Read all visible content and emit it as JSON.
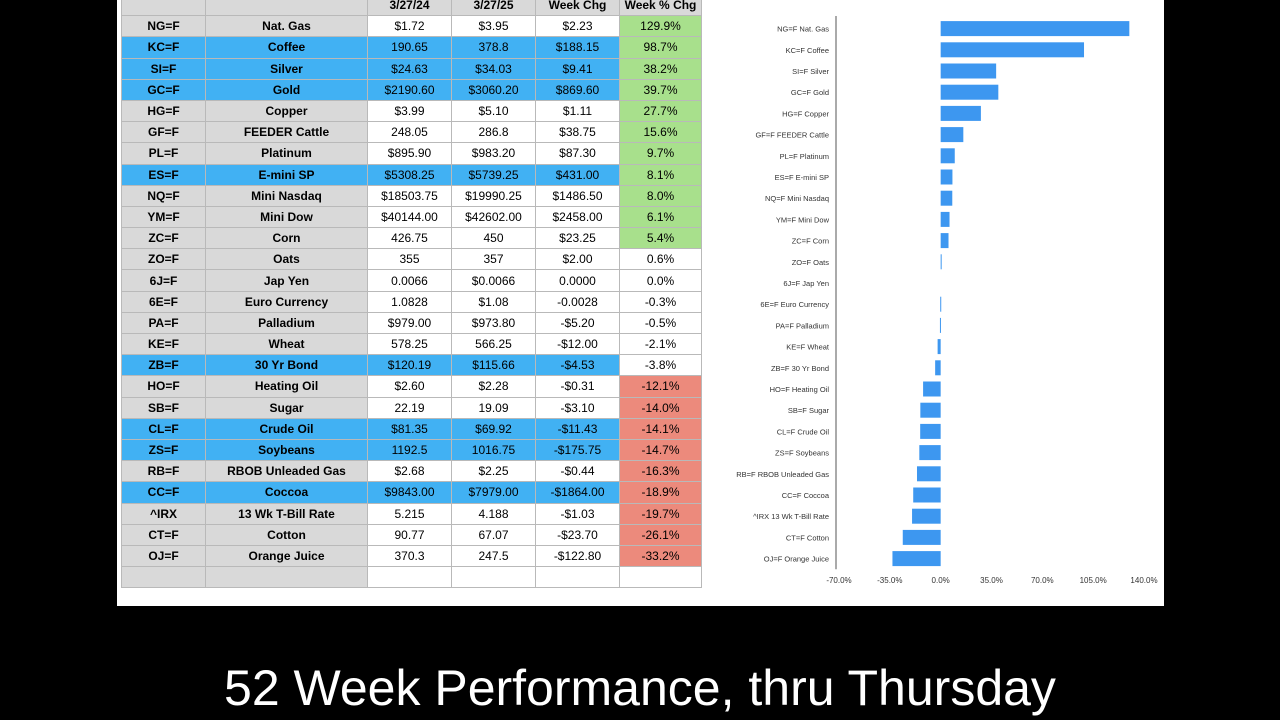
{
  "header": {
    "c3": "3/27/24",
    "c4": "3/27/25",
    "c5": "Week Chg",
    "c6": "Week % Chg"
  },
  "rows": [
    {
      "sym": "NG=F",
      "name": "Nat. Gas",
      "p1": "$1.72",
      "p2": "$3.95",
      "chg": "$2.23",
      "pct": "129.9%",
      "hl": false
    },
    {
      "sym": "KC=F",
      "name": "Coffee",
      "p1": "190.65",
      "p2": "378.8",
      "chg": "$188.15",
      "pct": "98.7%",
      "hl": true
    },
    {
      "sym": "SI=F",
      "name": "Silver",
      "p1": "$24.63",
      "p2": "$34.03",
      "chg": "$9.41",
      "pct": "38.2%",
      "hl": true
    },
    {
      "sym": "GC=F",
      "name": "Gold",
      "p1": "$2190.60",
      "p2": "$3060.20",
      "chg": "$869.60",
      "pct": "39.7%",
      "hl": true
    },
    {
      "sym": "HG=F",
      "name": "Copper",
      "p1": "$3.99",
      "p2": "$5.10",
      "chg": "$1.11",
      "pct": "27.7%",
      "hl": false
    },
    {
      "sym": "GF=F",
      "name": "FEEDER Cattle",
      "p1": "248.05",
      "p2": "286.8",
      "chg": "$38.75",
      "pct": "15.6%",
      "hl": false
    },
    {
      "sym": "PL=F",
      "name": "Platinum",
      "p1": "$895.90",
      "p2": "$983.20",
      "chg": "$87.30",
      "pct": "9.7%",
      "hl": false
    },
    {
      "sym": "ES=F",
      "name": "E-mini SP",
      "p1": "$5308.25",
      "p2": "$5739.25",
      "chg": "$431.00",
      "pct": "8.1%",
      "hl": true
    },
    {
      "sym": "NQ=F",
      "name": "Mini Nasdaq",
      "p1": "$18503.75",
      "p2": "$19990.25",
      "chg": "$1486.50",
      "pct": "8.0%",
      "hl": false
    },
    {
      "sym": "YM=F",
      "name": "Mini Dow",
      "p1": "$40144.00",
      "p2": "$42602.00",
      "chg": "$2458.00",
      "pct": "6.1%",
      "hl": false
    },
    {
      "sym": "ZC=F",
      "name": "Corn",
      "p1": "426.75",
      "p2": "450",
      "chg": "$23.25",
      "pct": "5.4%",
      "hl": false
    },
    {
      "sym": "ZO=F",
      "name": "Oats",
      "p1": "355",
      "p2": "357",
      "chg": "$2.00",
      "pct": "0.6%",
      "hl": false
    },
    {
      "sym": "6J=F",
      "name": "Jap Yen",
      "p1": "0.0066",
      "p2": "$0.0066",
      "chg": "0.0000",
      "pct": "0.0%",
      "hl": false
    },
    {
      "sym": "6E=F",
      "name": "Euro Currency",
      "p1": "1.0828",
      "p2": "$1.08",
      "chg": "-0.0028",
      "pct": "-0.3%",
      "hl": false
    },
    {
      "sym": "PA=F",
      "name": "Palladium",
      "p1": "$979.00",
      "p2": "$973.80",
      "chg": "-$5.20",
      "pct": "-0.5%",
      "hl": false
    },
    {
      "sym": "KE=F",
      "name": "Wheat",
      "p1": "578.25",
      "p2": "566.25",
      "chg": "-$12.00",
      "pct": "-2.1%",
      "hl": false
    },
    {
      "sym": "ZB=F",
      "name": "30 Yr Bond",
      "p1": "$120.19",
      "p2": "$115.66",
      "chg": "-$4.53",
      "pct": "-3.8%",
      "hl": true
    },
    {
      "sym": "HO=F",
      "name": "Heating Oil",
      "p1": "$2.60",
      "p2": "$2.28",
      "chg": "-$0.31",
      "pct": "-12.1%",
      "hl": false
    },
    {
      "sym": "SB=F",
      "name": "Sugar",
      "p1": "22.19",
      "p2": "19.09",
      "chg": "-$3.10",
      "pct": "-14.0%",
      "hl": false
    },
    {
      "sym": "CL=F",
      "name": "Crude Oil",
      "p1": "$81.35",
      "p2": "$69.92",
      "chg": "-$11.43",
      "pct": "-14.1%",
      "hl": true
    },
    {
      "sym": "ZS=F",
      "name": "Soybeans",
      "p1": "1192.5",
      "p2": "1016.75",
      "chg": "-$175.75",
      "pct": "-14.7%",
      "hl": true
    },
    {
      "sym": "RB=F",
      "name": "RBOB Unleaded Gas",
      "p1": "$2.68",
      "p2": "$2.25",
      "chg": "-$0.44",
      "pct": "-16.3%",
      "hl": false
    },
    {
      "sym": "CC=F",
      "name": "Coccoa",
      "p1": "$9843.00",
      "p2": "$7979.00",
      "chg": "-$1864.00",
      "pct": "-18.9%",
      "hl": true
    },
    {
      "sym": "^IRX",
      "name": "13 Wk T-Bill Rate",
      "p1": "5.215",
      "p2": "4.188",
      "chg": "-$1.03",
      "pct": "-19.7%",
      "hl": false
    },
    {
      "sym": "CT=F",
      "name": "Cotton",
      "p1": "90.77",
      "p2": "67.07",
      "chg": "-$23.70",
      "pct": "-26.1%",
      "hl": false
    },
    {
      "sym": "OJ=F",
      "name": "Orange Juice",
      "p1": "370.3",
      "p2": "247.5",
      "chg": "-$122.80",
      "pct": "-33.2%",
      "hl": false
    }
  ],
  "colors": {
    "highlight": "#41b1f3",
    "positive": "#a8e08c",
    "negative": "#ec8a7c",
    "label_gray": "#d9d9d9",
    "bar": "#3d97f0"
  },
  "chart_data": {
    "type": "bar",
    "orientation": "horizontal",
    "categories": [
      "NG=F Nat. Gas",
      "KC=F Coffee",
      "SI=F Silver",
      "GC=F Gold",
      "HG=F Copper",
      "GF=F FEEDER Cattle",
      "PL=F Platinum",
      "ES=F E-mini SP",
      "NQ=F Mini Nasdaq",
      "YM=F Mini Dow",
      "ZC=F Corn",
      "ZO=F Oats",
      "6J=F Jap Yen",
      "6E=F Euro Currency",
      "PA=F Palladium",
      "KE=F Wheat",
      "ZB=F 30 Yr Bond",
      "HO=F Heating Oil",
      "SB=F Sugar",
      "CL=F Crude Oil",
      "ZS=F Soybeans",
      "RB=F RBOB Unleaded Gas",
      "CC=F Coccoa",
      "^IRX 13 Wk T-Bill Rate",
      "CT=F Cotton",
      "OJ=F Orange Juice"
    ],
    "values": [
      129.9,
      98.7,
      38.2,
      39.7,
      27.7,
      15.6,
      9.7,
      8.1,
      8.0,
      6.1,
      5.4,
      0.6,
      0.0,
      -0.3,
      -0.5,
      -2.1,
      -3.8,
      -12.1,
      -14.0,
      -14.1,
      -14.7,
      -16.3,
      -18.9,
      -19.7,
      -26.1,
      -33.2
    ],
    "xlim": [
      -70,
      140
    ],
    "xticks": [
      "-70.0%",
      "-35.0%",
      "0.0%",
      "35.0%",
      "70.0%",
      "105.0%",
      "140.0%"
    ],
    "grid": false
  },
  "caption": "52 Week Performance, thru Thursday"
}
